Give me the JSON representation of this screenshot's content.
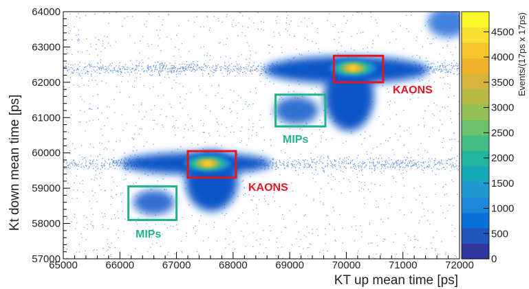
{
  "chart_data": {
    "type": "heatmap",
    "title": "",
    "xlabel": "KT up mean time [ps]",
    "ylabel": "Kt down mean time [ps]",
    "xlim": [
      65000,
      72000
    ],
    "ylim": [
      57000,
      64000
    ],
    "x_ticks": [
      65000,
      66000,
      67000,
      68000,
      69000,
      70000,
      71000,
      72000
    ],
    "x_tick_labels": [
      "65000",
      "66000",
      "67000",
      "68000",
      "69000",
      "70000",
      "71000",
      "72000"
    ],
    "y_ticks": [
      57000,
      58000,
      59000,
      60000,
      61000,
      62000,
      63000,
      64000
    ],
    "y_tick_labels": [
      "57000",
      "58000",
      "59000",
      "60000",
      "61000",
      "62000",
      "63000",
      "64000"
    ],
    "colorbar": {
      "label": "Events/(17ps x 17ps)",
      "range": [
        0,
        4900
      ],
      "ticks": [
        0,
        500,
        1000,
        1500,
        2000,
        2500,
        3000,
        3500,
        4000,
        4500
      ],
      "tick_labels": [
        "0",
        "500",
        "1000",
        "1500",
        "2000",
        "2500",
        "3000",
        "3500",
        "4000",
        "4500"
      ],
      "colors": [
        "#30369a",
        "#1f57bd",
        "#0a6fd8",
        "#1d87d9",
        "#1f99cf",
        "#14a9b6",
        "#22b49c",
        "#43bd85",
        "#6cc16d",
        "#95bf57",
        "#b8ba48",
        "#d6b33a",
        "#eeb22a",
        "#f8c42c",
        "#f9df31",
        "#f9f929"
      ]
    },
    "clusters": [
      {
        "name": "kaon-1",
        "center": [
          67550,
          59700
        ],
        "sx": 480,
        "sy": 420,
        "peak": 4900
      },
      {
        "name": "kaon-2",
        "center": [
          70120,
          62400
        ],
        "sx": 460,
        "sy": 380,
        "peak": 4900
      },
      {
        "name": "mip-1",
        "center": [
          66600,
          58600
        ],
        "sx": 380,
        "sy": 320,
        "peak": 600
      },
      {
        "name": "mip-2",
        "center": [
          69100,
          61200
        ],
        "sx": 380,
        "sy": 320,
        "peak": 600
      }
    ],
    "boxes": [
      {
        "label": "KAONS",
        "kind": "kaon",
        "x": [
          67200,
          68050
        ],
        "y": [
          59300,
          60050
        ],
        "color": "#e3151f"
      },
      {
        "label": "KAONS",
        "kind": "kaon",
        "x": [
          69780,
          70650
        ],
        "y": [
          62000,
          62750
        ],
        "color": "#e3151f"
      },
      {
        "label": "MIPs",
        "kind": "mip",
        "x": [
          66150,
          67000
        ],
        "y": [
          58100,
          59050
        ],
        "color": "#1fb38a"
      },
      {
        "label": "MIPs",
        "kind": "mip",
        "x": [
          68750,
          69630
        ],
        "y": [
          60750,
          61650
        ],
        "color": "#1fb38a"
      }
    ]
  },
  "annotations": {
    "kaons_1": "KAONS",
    "kaons_2": "KAONS",
    "mips_1": "MIPs",
    "mips_2": "MIPs"
  }
}
